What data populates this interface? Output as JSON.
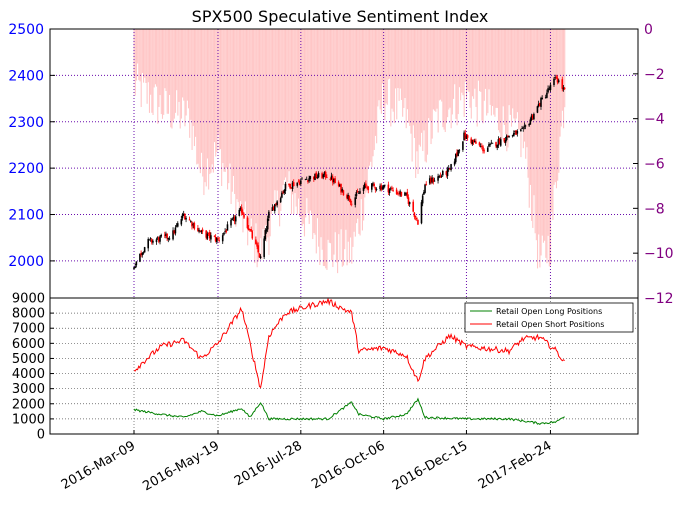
{
  "chart_data": [
    {
      "type": "bar+candlestick",
      "title": "SPX500 Speculative Sentiment Index",
      "left_axis": {
        "ylim": [
          1920,
          2500
        ],
        "ticks": [
          2000,
          2100,
          2200,
          2300,
          2400,
          2500
        ],
        "tick_color": "#0000ff"
      },
      "right_axis": {
        "ylim": [
          -12,
          0
        ],
        "ticks": [
          0,
          -2,
          -4,
          -6,
          -8,
          -10,
          -12
        ],
        "tick_labels": [
          "0",
          "−2",
          "−4",
          "−6",
          "−8",
          "−10",
          "−12"
        ],
        "tick_color": "#800080"
      },
      "grid": true,
      "sentiment_color": "#ffc6c6",
      "up_color": "#000000",
      "down_color": "#ff0000",
      "price_anchors": [
        {
          "x": "2016-03-09",
          "y": 1990
        },
        {
          "x": "2016-03-20",
          "y": 2040
        },
        {
          "x": "2016-04-10",
          "y": 2055
        },
        {
          "x": "2016-04-20",
          "y": 2100
        },
        {
          "x": "2016-05-05",
          "y": 2060
        },
        {
          "x": "2016-05-19",
          "y": 2045
        },
        {
          "x": "2016-06-08",
          "y": 2110
        },
        {
          "x": "2016-06-24",
          "y": 2005
        },
        {
          "x": "2016-07-01",
          "y": 2100
        },
        {
          "x": "2016-07-15",
          "y": 2160
        },
        {
          "x": "2016-08-05",
          "y": 2180
        },
        {
          "x": "2016-08-20",
          "y": 2185
        },
        {
          "x": "2016-09-09",
          "y": 2130
        },
        {
          "x": "2016-09-20",
          "y": 2160
        },
        {
          "x": "2016-10-06",
          "y": 2160
        },
        {
          "x": "2016-10-25",
          "y": 2140
        },
        {
          "x": "2016-11-04",
          "y": 2085
        },
        {
          "x": "2016-11-10",
          "y": 2165
        },
        {
          "x": "2016-12-01",
          "y": 2195
        },
        {
          "x": "2016-12-13",
          "y": 2270
        },
        {
          "x": "2016-12-30",
          "y": 2240
        },
        {
          "x": "2017-01-20",
          "y": 2270
        },
        {
          "x": "2017-02-01",
          "y": 2280
        },
        {
          "x": "2017-02-15",
          "y": 2340
        },
        {
          "x": "2017-03-01",
          "y": 2395
        },
        {
          "x": "2017-03-08",
          "y": 2365
        }
      ],
      "sentiment_anchors": [
        {
          "x": "2016-03-09",
          "y": -2.5
        },
        {
          "x": "2016-04-01",
          "y": -3.5
        },
        {
          "x": "2016-04-25",
          "y": -4.0
        },
        {
          "x": "2016-05-05",
          "y": -6.5
        },
        {
          "x": "2016-05-19",
          "y": -5.5
        },
        {
          "x": "2016-06-08",
          "y": -8.5
        },
        {
          "x": "2016-06-24",
          "y": -10.0
        },
        {
          "x": "2016-07-01",
          "y": -9.0
        },
        {
          "x": "2016-07-15",
          "y": -7.0
        },
        {
          "x": "2016-08-01",
          "y": -8.5
        },
        {
          "x": "2016-08-20",
          "y": -10.0
        },
        {
          "x": "2016-09-09",
          "y": -10.0
        },
        {
          "x": "2016-09-20",
          "y": -7.5
        },
        {
          "x": "2016-10-06",
          "y": -3.0
        },
        {
          "x": "2016-10-25",
          "y": -4.0
        },
        {
          "x": "2016-11-04",
          "y": -6.0
        },
        {
          "x": "2016-11-20",
          "y": -4.0
        },
        {
          "x": "2016-12-01",
          "y": -3.5
        },
        {
          "x": "2016-12-15",
          "y": -3.0
        },
        {
          "x": "2017-01-10",
          "y": -4.0
        },
        {
          "x": "2017-02-01",
          "y": -5.0
        },
        {
          "x": "2017-02-10",
          "y": -8.5
        },
        {
          "x": "2017-02-15",
          "y": -10.5
        },
        {
          "x": "2017-02-24",
          "y": -9.5
        },
        {
          "x": "2017-03-02",
          "y": -6.0
        },
        {
          "x": "2017-03-08",
          "y": -3.0
        }
      ]
    },
    {
      "type": "line",
      "ylim": [
        0,
        9000
      ],
      "yticks": [
        0,
        1000,
        2000,
        3000,
        4000,
        5000,
        6000,
        7000,
        8000,
        9000
      ],
      "xticks": [
        "2016-Mar-09",
        "2016-May-19",
        "2016-Jul-28",
        "2016-Oct-06",
        "2016-Dec-15",
        "2017-Feb-24"
      ],
      "legend_placement": "upper-right",
      "grid": true,
      "series": [
        {
          "name": "Retail Open Long Positions",
          "color": "#008000",
          "anchors": [
            {
              "x": "2016-03-09",
              "y": 1600
            },
            {
              "x": "2016-04-01",
              "y": 1300
            },
            {
              "x": "2016-04-20",
              "y": 1100
            },
            {
              "x": "2016-05-05",
              "y": 1500
            },
            {
              "x": "2016-05-19",
              "y": 1200
            },
            {
              "x": "2016-06-08",
              "y": 1700
            },
            {
              "x": "2016-06-15",
              "y": 1100
            },
            {
              "x": "2016-06-24",
              "y": 2100
            },
            {
              "x": "2016-07-01",
              "y": 1000
            },
            {
              "x": "2016-07-20",
              "y": 1000
            },
            {
              "x": "2016-08-20",
              "y": 1000
            },
            {
              "x": "2016-09-09",
              "y": 2100
            },
            {
              "x": "2016-09-15",
              "y": 1300
            },
            {
              "x": "2016-10-06",
              "y": 1000
            },
            {
              "x": "2016-10-25",
              "y": 1300
            },
            {
              "x": "2016-11-04",
              "y": 2300
            },
            {
              "x": "2016-11-10",
              "y": 1100
            },
            {
              "x": "2016-12-15",
              "y": 1000
            },
            {
              "x": "2017-01-20",
              "y": 1000
            },
            {
              "x": "2017-02-15",
              "y": 700
            },
            {
              "x": "2017-03-01",
              "y": 800
            },
            {
              "x": "2017-03-08",
              "y": 1200
            }
          ]
        },
        {
          "name": "Retail Open Short Positions",
          "color": "#ff0000",
          "anchors": [
            {
              "x": "2016-03-09",
              "y": 4200
            },
            {
              "x": "2016-03-20",
              "y": 5000
            },
            {
              "x": "2016-04-01",
              "y": 5800
            },
            {
              "x": "2016-04-20",
              "y": 6200
            },
            {
              "x": "2016-05-05",
              "y": 5000
            },
            {
              "x": "2016-05-19",
              "y": 6000
            },
            {
              "x": "2016-06-08",
              "y": 8300
            },
            {
              "x": "2016-06-15",
              "y": 6000
            },
            {
              "x": "2016-06-24",
              "y": 3000
            },
            {
              "x": "2016-07-01",
              "y": 6500
            },
            {
              "x": "2016-07-15",
              "y": 8000
            },
            {
              "x": "2016-08-05",
              "y": 8500
            },
            {
              "x": "2016-08-20",
              "y": 8800
            },
            {
              "x": "2016-09-09",
              "y": 8000
            },
            {
              "x": "2016-09-15",
              "y": 5500
            },
            {
              "x": "2016-10-06",
              "y": 5700
            },
            {
              "x": "2016-10-25",
              "y": 5200
            },
            {
              "x": "2016-11-04",
              "y": 3500
            },
            {
              "x": "2016-11-10",
              "y": 5000
            },
            {
              "x": "2016-12-01",
              "y": 6500
            },
            {
              "x": "2016-12-15",
              "y": 5800
            },
            {
              "x": "2017-01-20",
              "y": 5500
            },
            {
              "x": "2017-02-01",
              "y": 6300
            },
            {
              "x": "2017-02-15",
              "y": 6400
            },
            {
              "x": "2017-03-01",
              "y": 5500
            },
            {
              "x": "2017-03-08",
              "y": 4700
            }
          ]
        }
      ]
    }
  ]
}
